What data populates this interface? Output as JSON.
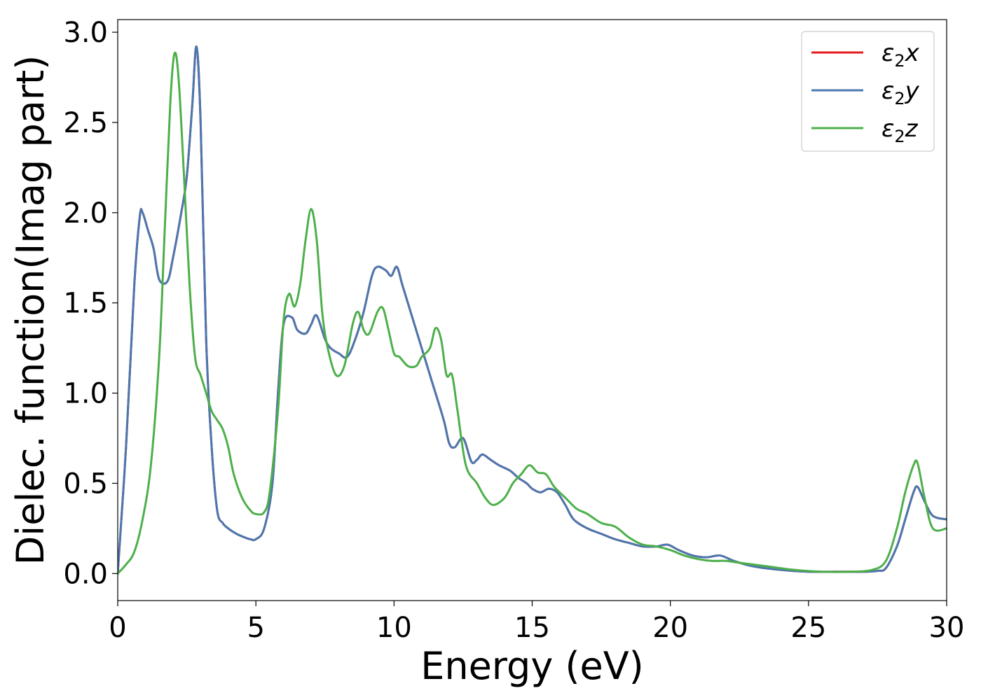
{
  "chart_data": {
    "type": "line",
    "xlabel": "Energy (eV)",
    "ylabel": "Dielec. function(Imag part)",
    "xlim": [
      0,
      30
    ],
    "ylim": [
      -0.15,
      3.07
    ],
    "xticks": [
      0,
      5,
      10,
      15,
      20,
      25,
      30
    ],
    "xtick_labels": [
      "0",
      "5",
      "10",
      "15",
      "20",
      "25",
      "30"
    ],
    "yticks": [
      0.0,
      0.5,
      1.0,
      1.5,
      2.0,
      2.5,
      3.0
    ],
    "ytick_labels": [
      "0.0",
      "0.5",
      "1.0",
      "1.5",
      "2.0",
      "2.5",
      "3.0"
    ],
    "grid": false,
    "legend_position": "top-right",
    "series": [
      {
        "name": "ε₂x",
        "legend_base": "ε",
        "legend_sub": "2",
        "legend_var": "x",
        "color": "#e41a1c",
        "x": [
          0,
          0.3,
          0.6,
          0.8,
          0.9,
          1.1,
          1.3,
          1.5,
          1.8,
          2.0,
          2.3,
          2.5,
          2.7,
          2.85,
          3.0,
          3.2,
          3.4,
          3.6,
          3.8,
          4.0,
          4.3,
          4.6,
          4.8,
          5.0,
          5.3,
          5.6,
          5.8,
          6.0,
          6.3,
          6.5,
          6.8,
          7.0,
          7.2,
          7.5,
          7.7,
          8.0,
          8.3,
          8.6,
          8.9,
          9.2,
          9.4,
          9.7,
          9.9,
          10.1,
          10.3,
          10.6,
          11.0,
          11.4,
          11.8,
          12.0,
          12.2,
          12.5,
          12.8,
          13.0,
          13.2,
          13.5,
          13.8,
          14.2,
          14.5,
          14.8,
          15.0,
          15.3,
          15.6,
          15.9,
          16.2,
          16.5,
          17.0,
          17.5,
          18.0,
          18.5,
          19.0,
          19.5,
          19.9,
          20.3,
          20.8,
          21.3,
          21.8,
          22.3,
          23.0,
          24.0,
          25.0,
          26.0,
          27.0,
          27.5,
          27.8,
          28.2,
          28.5,
          28.8,
          28.95,
          29.2,
          29.5,
          30.0
        ],
        "y": [
          0.0,
          0.7,
          1.6,
          1.98,
          2.0,
          1.9,
          1.8,
          1.63,
          1.62,
          1.75,
          2.0,
          2.2,
          2.6,
          2.92,
          2.5,
          1.3,
          0.7,
          0.35,
          0.28,
          0.25,
          0.22,
          0.2,
          0.19,
          0.19,
          0.25,
          0.5,
          1.0,
          1.38,
          1.42,
          1.35,
          1.33,
          1.38,
          1.43,
          1.3,
          1.25,
          1.22,
          1.2,
          1.3,
          1.45,
          1.65,
          1.7,
          1.68,
          1.65,
          1.7,
          1.6,
          1.45,
          1.25,
          1.05,
          0.85,
          0.72,
          0.7,
          0.75,
          0.62,
          0.63,
          0.66,
          0.63,
          0.6,
          0.57,
          0.53,
          0.5,
          0.47,
          0.45,
          0.47,
          0.45,
          0.38,
          0.3,
          0.25,
          0.22,
          0.19,
          0.17,
          0.15,
          0.15,
          0.16,
          0.13,
          0.1,
          0.09,
          0.1,
          0.07,
          0.04,
          0.02,
          0.01,
          0.01,
          0.01,
          0.015,
          0.03,
          0.15,
          0.3,
          0.45,
          0.48,
          0.4,
          0.32,
          0.3
        ]
      },
      {
        "name": "ε₂y",
        "legend_base": "ε",
        "legend_sub": "2",
        "legend_var": "y",
        "color": "#4a78b0",
        "x": [
          0,
          0.3,
          0.6,
          0.8,
          0.9,
          1.1,
          1.3,
          1.5,
          1.8,
          2.0,
          2.3,
          2.5,
          2.7,
          2.85,
          3.0,
          3.2,
          3.4,
          3.6,
          3.8,
          4.0,
          4.3,
          4.6,
          4.8,
          5.0,
          5.3,
          5.6,
          5.8,
          6.0,
          6.3,
          6.5,
          6.8,
          7.0,
          7.2,
          7.5,
          7.7,
          8.0,
          8.3,
          8.6,
          8.9,
          9.2,
          9.4,
          9.7,
          9.9,
          10.1,
          10.3,
          10.6,
          11.0,
          11.4,
          11.8,
          12.0,
          12.2,
          12.5,
          12.8,
          13.0,
          13.2,
          13.5,
          13.8,
          14.2,
          14.5,
          14.8,
          15.0,
          15.3,
          15.6,
          15.9,
          16.2,
          16.5,
          17.0,
          17.5,
          18.0,
          18.5,
          19.0,
          19.5,
          19.9,
          20.3,
          20.8,
          21.3,
          21.8,
          22.3,
          23.0,
          24.0,
          25.0,
          26.0,
          27.0,
          27.5,
          27.8,
          28.2,
          28.5,
          28.8,
          28.95,
          29.2,
          29.5,
          30.0
        ],
        "y": [
          0.0,
          0.7,
          1.6,
          1.98,
          2.0,
          1.9,
          1.8,
          1.63,
          1.62,
          1.75,
          2.0,
          2.2,
          2.6,
          2.92,
          2.5,
          1.3,
          0.7,
          0.35,
          0.28,
          0.25,
          0.22,
          0.2,
          0.19,
          0.19,
          0.25,
          0.5,
          1.0,
          1.38,
          1.42,
          1.35,
          1.33,
          1.38,
          1.43,
          1.3,
          1.25,
          1.22,
          1.2,
          1.3,
          1.45,
          1.65,
          1.7,
          1.68,
          1.65,
          1.7,
          1.6,
          1.45,
          1.25,
          1.05,
          0.85,
          0.72,
          0.7,
          0.75,
          0.62,
          0.63,
          0.66,
          0.63,
          0.6,
          0.57,
          0.53,
          0.5,
          0.47,
          0.45,
          0.47,
          0.45,
          0.38,
          0.3,
          0.25,
          0.22,
          0.19,
          0.17,
          0.15,
          0.15,
          0.16,
          0.13,
          0.1,
          0.09,
          0.1,
          0.07,
          0.04,
          0.02,
          0.01,
          0.01,
          0.01,
          0.015,
          0.03,
          0.15,
          0.3,
          0.45,
          0.48,
          0.4,
          0.32,
          0.3
        ]
      },
      {
        "name": "ε₂z",
        "legend_base": "ε",
        "legend_sub": "2",
        "legend_var": "z",
        "color": "#4daf4a",
        "x": [
          0,
          0.3,
          0.6,
          0.9,
          1.2,
          1.5,
          1.7,
          1.9,
          2.05,
          2.2,
          2.4,
          2.6,
          2.8,
          3.0,
          3.2,
          3.4,
          3.6,
          3.8,
          4.0,
          4.2,
          4.5,
          4.8,
          5.0,
          5.3,
          5.5,
          5.8,
          6.0,
          6.2,
          6.4,
          6.6,
          6.8,
          7.0,
          7.2,
          7.4,
          7.6,
          7.9,
          8.2,
          8.5,
          8.7,
          8.9,
          9.1,
          9.4,
          9.6,
          9.8,
          10.0,
          10.2,
          10.5,
          10.8,
          11.0,
          11.3,
          11.5,
          11.7,
          11.9,
          12.1,
          12.3,
          12.6,
          13.0,
          13.3,
          13.6,
          14.0,
          14.3,
          14.6,
          14.9,
          15.2,
          15.5,
          15.8,
          16.2,
          16.6,
          17.0,
          17.5,
          18.0,
          18.5,
          19.0,
          19.5,
          20.0,
          20.5,
          21.0,
          21.5,
          22.0,
          22.5,
          23.5,
          24.5,
          25.5,
          26.5,
          27.3,
          27.8,
          28.2,
          28.5,
          28.8,
          28.95,
          29.2,
          29.5,
          30.0
        ],
        "y": [
          0.0,
          0.05,
          0.12,
          0.3,
          0.6,
          1.2,
          1.9,
          2.6,
          2.88,
          2.75,
          2.2,
          1.6,
          1.2,
          1.1,
          1.0,
          0.9,
          0.85,
          0.8,
          0.7,
          0.55,
          0.42,
          0.35,
          0.33,
          0.34,
          0.45,
          0.9,
          1.4,
          1.55,
          1.48,
          1.6,
          1.85,
          2.02,
          1.85,
          1.45,
          1.25,
          1.1,
          1.15,
          1.38,
          1.45,
          1.35,
          1.33,
          1.45,
          1.47,
          1.35,
          1.22,
          1.2,
          1.15,
          1.15,
          1.2,
          1.25,
          1.36,
          1.3,
          1.1,
          1.1,
          0.9,
          0.6,
          0.5,
          0.42,
          0.38,
          0.42,
          0.5,
          0.55,
          0.6,
          0.56,
          0.55,
          0.48,
          0.42,
          0.36,
          0.33,
          0.28,
          0.26,
          0.2,
          0.16,
          0.15,
          0.13,
          0.1,
          0.08,
          0.07,
          0.07,
          0.06,
          0.04,
          0.02,
          0.01,
          0.01,
          0.02,
          0.07,
          0.25,
          0.45,
          0.6,
          0.61,
          0.42,
          0.25,
          0.25
        ]
      }
    ]
  }
}
